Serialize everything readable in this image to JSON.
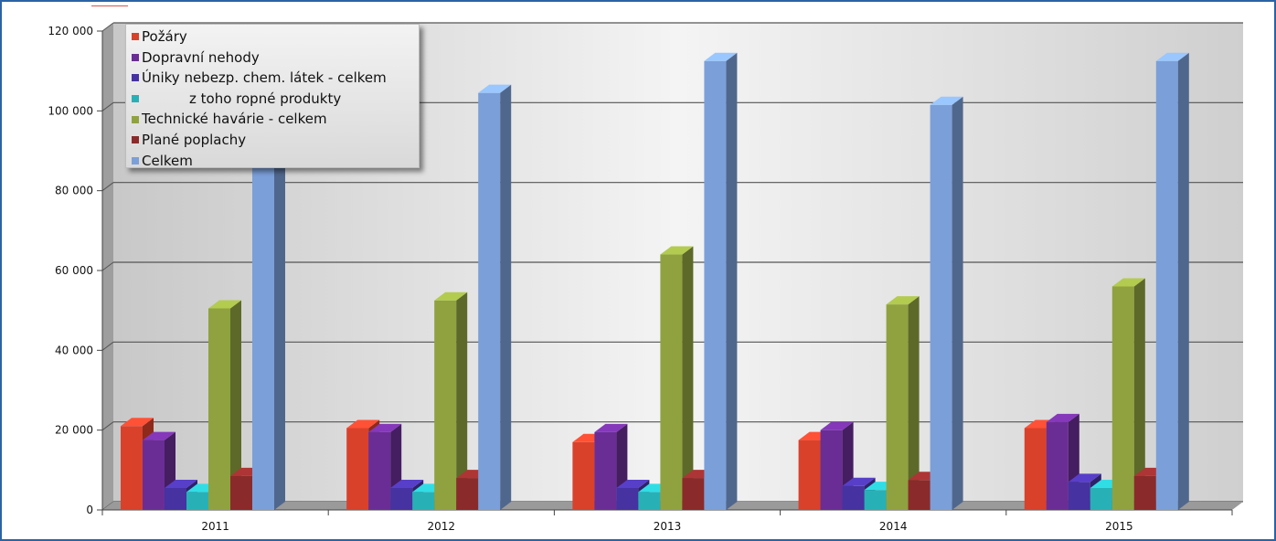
{
  "chart_data": {
    "type": "bar",
    "title": "",
    "xlabel": "",
    "ylabel": "",
    "categories": [
      "2011",
      "2012",
      "2013",
      "2014",
      "2015"
    ],
    "ylim": [
      0,
      120000
    ],
    "yticks": [
      0,
      20000,
      40000,
      60000,
      80000,
      100000,
      120000
    ],
    "ytick_labels": [
      "0",
      "20 000",
      "40 000",
      "60 000",
      "80 000",
      "100 000",
      "120 000"
    ],
    "grid": true,
    "legend_position": "top-left",
    "series": [
      {
        "name": "Požáry",
        "color": "#d9412b",
        "values": [
          21000,
          20500,
          17000,
          17500,
          20500
        ]
      },
      {
        "name": "Dopravní nehody",
        "color": "#6a2d95",
        "values": [
          17500,
          19500,
          19500,
          20000,
          22000
        ]
      },
      {
        "name": "Úniky nebezp. chem. látek - celkem",
        "color": "#4632a1",
        "values": [
          5500,
          5500,
          5500,
          6000,
          7000
        ]
      },
      {
        "name": "z toho ropné produkty",
        "color": "#27b1b7",
        "values": [
          4500,
          4500,
          4500,
          5000,
          5500
        ]
      },
      {
        "name": "Technické havárie - celkem",
        "color": "#8fa23f",
        "values": [
          50500,
          52500,
          64000,
          51500,
          56000
        ]
      },
      {
        "name": "Plané poplachy",
        "color": "#8b2a2a",
        "values": [
          8500,
          8000,
          8000,
          7500,
          8500
        ]
      },
      {
        "name": "Celkem",
        "color": "#7b9fd9",
        "values": [
          98000,
          104500,
          112500,
          101500,
          112500
        ]
      }
    ]
  }
}
